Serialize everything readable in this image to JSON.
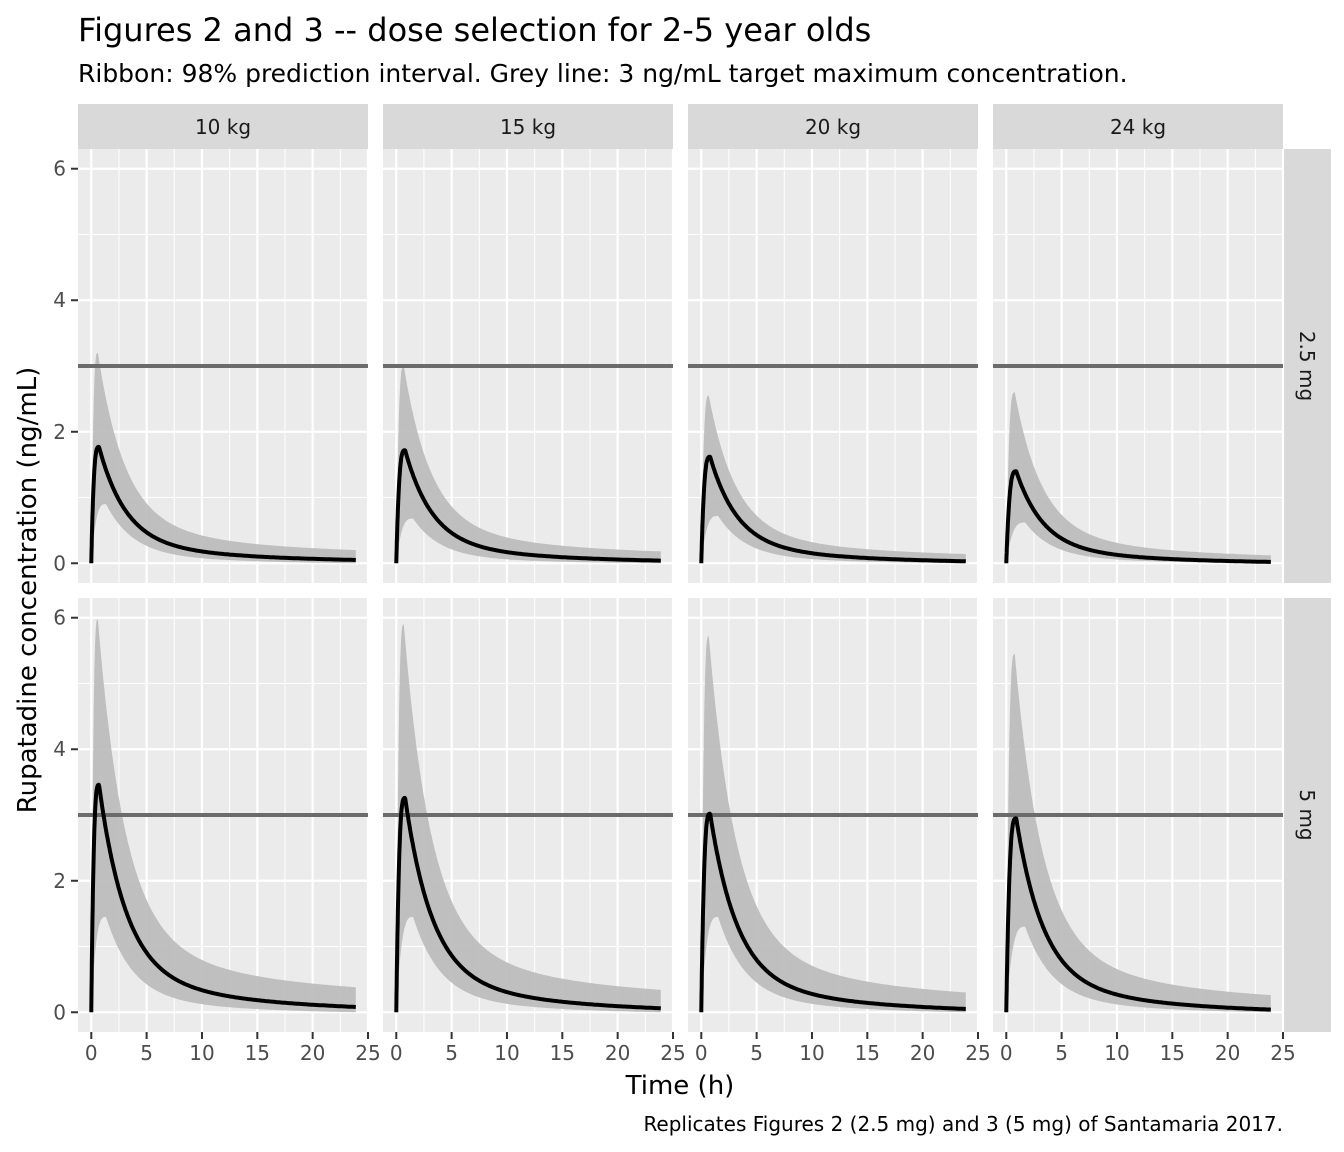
{
  "chart_data": {
    "type": "line",
    "title": "Figures 2 and 3 -- dose selection for 2-5 year olds",
    "subtitle": "Ribbon: 98% prediction interval. Grey line: 3 ng/mL target maximum concentration.",
    "caption": "Replicates Figures 2 (2.5 mg) and 3 (5 mg) of Santamaria 2017.",
    "xlabel": "Time (h)",
    "ylabel": "Rupatadine concentration (ng/mL)",
    "xlim": [
      -1.2,
      25
    ],
    "ylim": [
      -0.3,
      6.3
    ],
    "x_ticks": [
      0,
      5,
      10,
      15,
      20,
      25
    ],
    "y_ticks": [
      0,
      2,
      4,
      6
    ],
    "target_line": 3,
    "grid": true,
    "facet_columns": [
      "10 kg",
      "15 kg",
      "20 kg",
      "24 kg"
    ],
    "facet_rows": [
      "2.5 mg",
      "5 mg"
    ],
    "colors": {
      "panel_background": "#ebebeb",
      "strip_background": "#d9d9d9",
      "ribbon": "#bdbdbd",
      "median_line": "#000000",
      "target_line": "#6b6b6b",
      "grid": "#ffffff"
    },
    "panels": [
      {
        "row": "2.5 mg",
        "col": "10 kg",
        "peak_time": 0.7,
        "median_peak": 1.77,
        "median_end": 0.05,
        "upper_peak": 3.2,
        "upper_end": 0.2,
        "lower_peak": 0.9,
        "lower_end": 0.0
      },
      {
        "row": "2.5 mg",
        "col": "15 kg",
        "peak_time": 0.8,
        "median_peak": 1.72,
        "median_end": 0.04,
        "upper_peak": 3.0,
        "upper_end": 0.18,
        "lower_peak": 0.68,
        "lower_end": 0.0
      },
      {
        "row": "2.5 mg",
        "col": "20 kg",
        "peak_time": 0.8,
        "median_peak": 1.62,
        "median_end": 0.03,
        "upper_peak": 2.55,
        "upper_end": 0.14,
        "lower_peak": 0.72,
        "lower_end": 0.0
      },
      {
        "row": "2.5 mg",
        "col": "24 kg",
        "peak_time": 0.9,
        "median_peak": 1.4,
        "median_end": 0.02,
        "upper_peak": 2.6,
        "upper_end": 0.12,
        "lower_peak": 0.62,
        "lower_end": 0.0
      },
      {
        "row": "5 mg",
        "col": "10 kg",
        "peak_time": 0.7,
        "median_peak": 3.46,
        "median_end": 0.08,
        "upper_peak": 5.98,
        "upper_end": 0.38,
        "lower_peak": 1.45,
        "lower_end": 0.0
      },
      {
        "row": "5 mg",
        "col": "15 kg",
        "peak_time": 0.8,
        "median_peak": 3.26,
        "median_end": 0.06,
        "upper_peak": 5.9,
        "upper_end": 0.34,
        "lower_peak": 1.45,
        "lower_end": 0.0
      },
      {
        "row": "5 mg",
        "col": "20 kg",
        "peak_time": 0.8,
        "median_peak": 3.02,
        "median_end": 0.05,
        "upper_peak": 5.72,
        "upper_end": 0.3,
        "lower_peak": 1.45,
        "lower_end": 0.0
      },
      {
        "row": "5 mg",
        "col": "24 kg",
        "peak_time": 0.9,
        "median_peak": 2.95,
        "median_end": 0.04,
        "upper_peak": 5.45,
        "upper_end": 0.26,
        "lower_peak": 1.3,
        "lower_end": 0.0
      }
    ]
  }
}
